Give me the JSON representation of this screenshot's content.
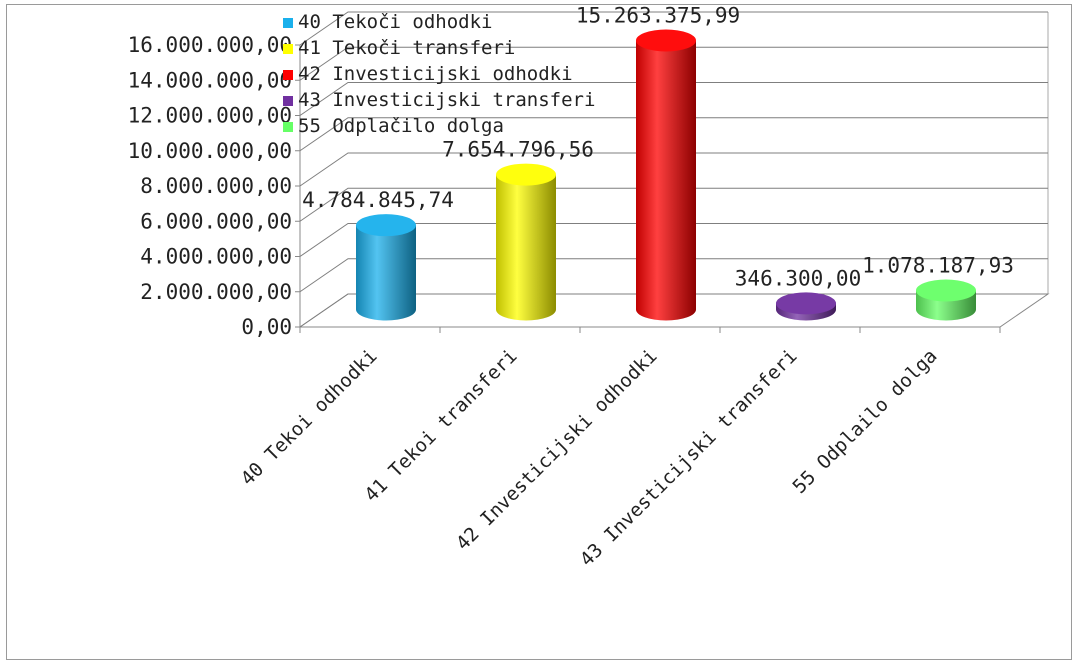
{
  "chart_data": {
    "type": "bar",
    "three_d": true,
    "bar_shape": "cylinder",
    "categories": [
      "40 Teko\u0010i odhodki",
      "41 Teko\u0010i transferi",
      "42 Investicijski odhodki",
      "43 Investicijski transferi",
      "55 Odpla\u0010ilo dolga"
    ],
    "values": [
      4784845.74,
      7654796.56,
      15263375.99,
      346300.0,
      1078187.93
    ],
    "data_labels": [
      "4.784.845,74",
      "7.654.796,56",
      "15.263.375,99",
      "346.300,00",
      "1.078.187,93"
    ],
    "colors": [
      "#1ab0ec",
      "#ffff00",
      "#ff0000",
      "#7030a0",
      "#66ff66"
    ],
    "y_ticks": [
      "0,00",
      "2.000.000,00",
      "4.000.000,00",
      "6.000.000,00",
      "8.000.000,00",
      "10.000.000,00",
      "12.000.000,00",
      "14.000.000,00",
      "16.000.000,00"
    ],
    "ylim": [
      0,
      16000000
    ],
    "grid": true,
    "legend": {
      "placement": "top-left",
      "entries": [
        "40 Tekoči odhodki",
        "41 Tekoči transferi",
        "42 Investicijski odhodki",
        "43 Investicijski transferi",
        "55 Odplačilo dolga"
      ]
    }
  }
}
